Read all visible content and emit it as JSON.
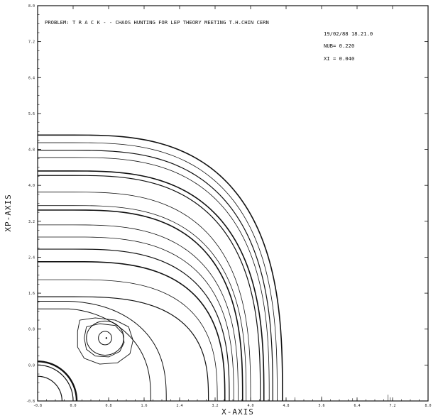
{
  "header": {
    "problem_line": "PROBLEM: T R A C K - - CHAOS HUNTING FOR LEP THEORY MEETING  T.H.CHIN CERN",
    "date_time": "19/02/88  18.21.0",
    "nub_label": "NUB=  0.220",
    "xi_label": "XI  =  0.040"
  },
  "chart_data": {
    "type": "line",
    "title": "PROBLEM: T R A C K - - CHAOS HUNTING FOR LEP THEORY MEETING  T.H.CHIN CERN",
    "xlabel": "X-AXIS",
    "ylabel": "XP-AXIS",
    "xlim": [
      -0.8,
      8.0
    ],
    "ylim": [
      -0.8,
      8.0
    ],
    "x_tick_labels": [
      "-0.8",
      "0.0",
      "0.8",
      "1.6",
      "2.4",
      "3.2",
      "4.0",
      "4.8",
      "5.6",
      "6.4",
      "7.2",
      "8.0"
    ],
    "y_tick_labels": [
      "-0.8",
      "0.0",
      "0.8",
      "1.6",
      "2.4",
      "3.2",
      "4.0",
      "4.8",
      "5.6",
      "6.4",
      "7.2",
      "8.0"
    ],
    "grid": false,
    "series": [
      {
        "kind": "island_center",
        "center": [
          0.72,
          0.6
        ],
        "values": [
          [
            0.75,
            0.6
          ]
        ]
      },
      {
        "kind": "island",
        "center": [
          0.72,
          0.6
        ],
        "rx": 0.15,
        "ry": 0.15
      },
      {
        "kind": "island",
        "center": [
          0.72,
          0.6
        ],
        "rx": 0.42,
        "ry": 0.38
      },
      {
        "kind": "core",
        "r": 0.55
      },
      {
        "kind": "core",
        "r": 0.8
      },
      {
        "kind": "core",
        "r": 0.88
      },
      {
        "kind": "quarter",
        "y0": 1.52,
        "r": 3.05
      },
      {
        "kind": "quarter",
        "y0": 1.9,
        "r": 3.25
      },
      {
        "kind": "quarter",
        "y0": 2.3,
        "r": 3.42
      },
      {
        "kind": "quarter",
        "y0": 2.58,
        "r": 3.52
      },
      {
        "kind": "quarter",
        "y0": 2.85,
        "r": 3.62
      },
      {
        "kind": "quarter",
        "y0": 3.12,
        "r": 3.72
      },
      {
        "kind": "quarter",
        "y0": 3.45,
        "r": 3.82
      },
      {
        "kind": "quarter",
        "y0": 3.55,
        "r": 3.9
      },
      {
        "kind": "quarter",
        "y0": 3.85,
        "r": 4.0
      },
      {
        "kind": "quarter",
        "y0": 4.22,
        "r": 4.22
      },
      {
        "kind": "quarter",
        "y0": 4.32,
        "r": 4.3
      },
      {
        "kind": "quarter",
        "y0": 4.62,
        "r": 4.42
      },
      {
        "kind": "quarter",
        "y0": 4.78,
        "r": 4.5
      },
      {
        "kind": "quarter",
        "y0": 4.95,
        "r": 4.6
      },
      {
        "kind": "quarter",
        "y0": 5.12,
        "r": 4.72
      }
    ]
  }
}
